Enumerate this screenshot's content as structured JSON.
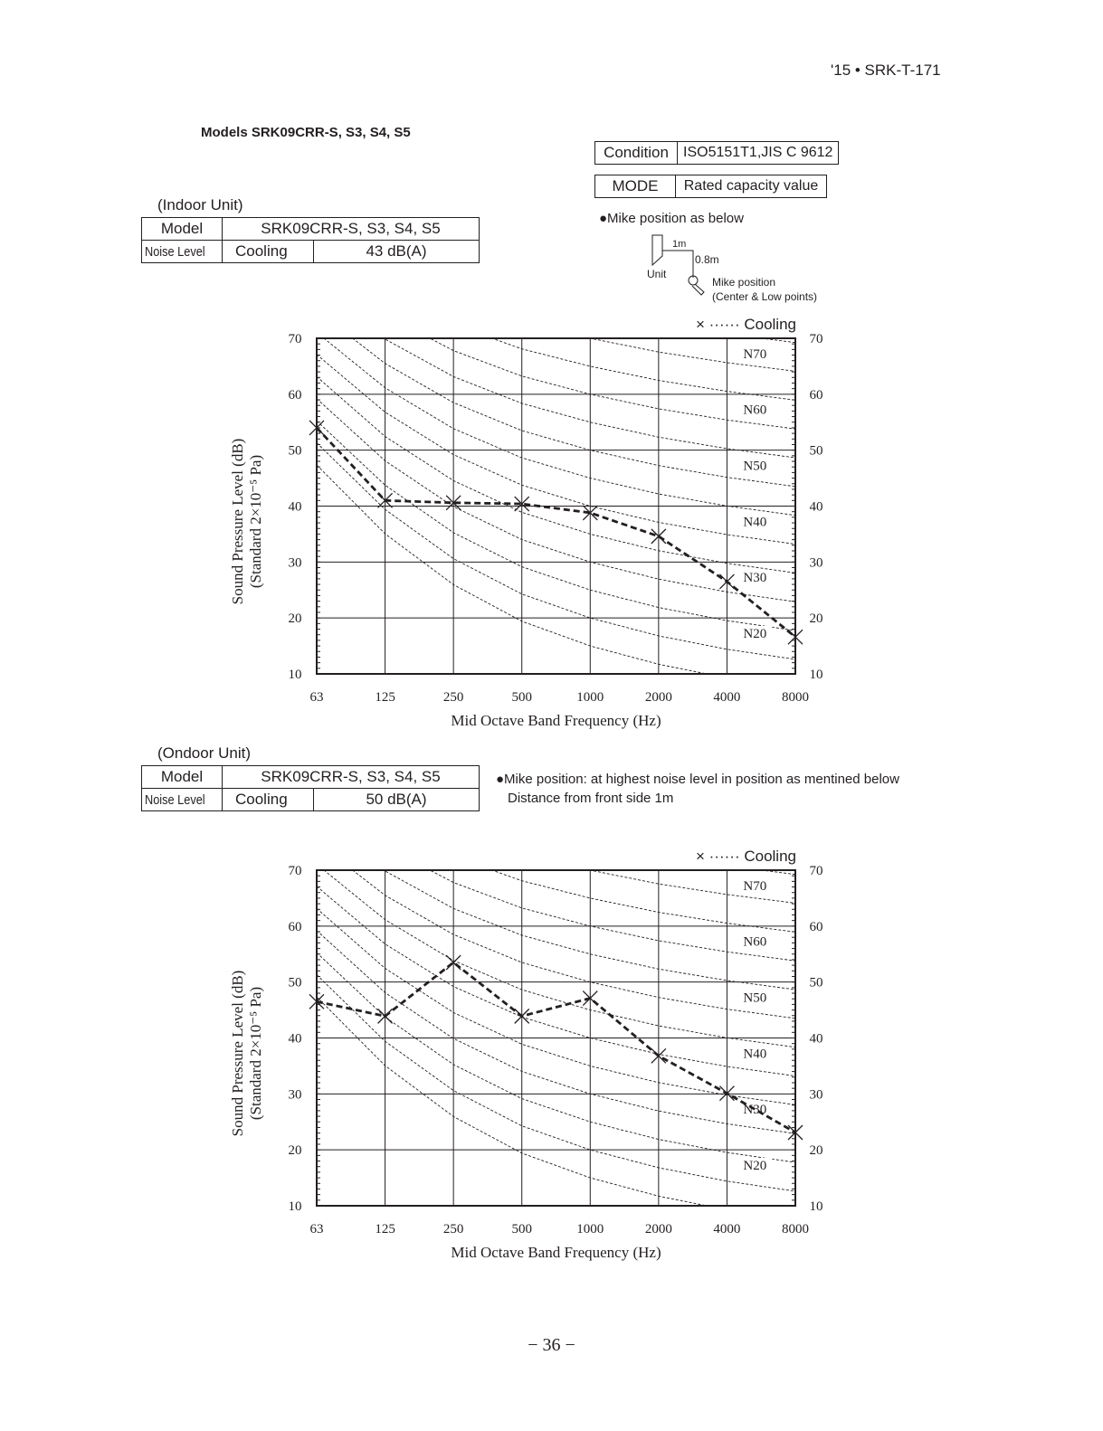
{
  "header": {
    "doc_ref": "'15 • SRK-T-171",
    "models_title": "Models SRK09CRR-S, S3, S4, S5"
  },
  "condition_table": {
    "condition_label": "Condition",
    "condition_value": "ISO5151T1,JIS C 9612",
    "mode_label": "MODE",
    "mode_value": "Rated capacity value"
  },
  "mike_indoor": {
    "note": "●Mike position as below",
    "dist1": "1m",
    "dist2": "0.8m",
    "unit_label": "Unit",
    "mike_label": "Mike position",
    "mike_sub": "(Center & Low points)"
  },
  "indoor": {
    "title": "(Indoor Unit)",
    "model_label": "Model",
    "model_value": "SRK09CRR-S, S3, S4, S5",
    "noise_label": "Noise Level",
    "mode": "Cooling",
    "level": "43 dB(A)"
  },
  "outdoor": {
    "title": "(Ondoor Unit)",
    "model_label": "Model",
    "model_value": "SRK09CRR-S, S3, S4, S5",
    "noise_label": "Noise Level",
    "mode": "Cooling",
    "level": "50 dB(A)",
    "note1": "●Mike position: at highest noise level in position as mentined below",
    "note2": "Distance from front side    1m"
  },
  "page_number": "− 36 −",
  "chart_data": [
    {
      "type": "line",
      "title": "Indoor Unit",
      "xlabel": "Mid Octave Band Frequency (Hz)",
      "ylabel": "Sound Pressure Level (dB)",
      "ylabel2": "(Standard 2×10⁻⁵ Pa)",
      "categories": [
        "63",
        "125",
        "250",
        "500",
        "1000",
        "2000",
        "4000",
        "8000"
      ],
      "ylim": [
        10,
        70
      ],
      "yticks": [
        "10",
        "20",
        "30",
        "40",
        "50",
        "60",
        "70"
      ],
      "legend": "× ······ Cooling",
      "legend_position": "top-right",
      "grid": true,
      "nr_labels": [
        "N70",
        "N60",
        "N50",
        "N40",
        "N30",
        "N20"
      ],
      "series": [
        {
          "name": "Cooling",
          "values": [
            54,
            41,
            40.6,
            40.4,
            38.8,
            34.6,
            26.5,
            16.6
          ]
        }
      ]
    },
    {
      "type": "line",
      "title": "Outdoor Unit",
      "xlabel": "Mid Octave Band Frequency (Hz)",
      "ylabel": "Sound Pressure Level (dB)",
      "ylabel2": "(Standard 2×10⁻⁵ Pa)",
      "categories": [
        "63",
        "125",
        "250",
        "500",
        "1000",
        "2000",
        "4000",
        "8000"
      ],
      "ylim": [
        10,
        70
      ],
      "yticks": [
        "10",
        "20",
        "30",
        "40",
        "50",
        "60",
        "70"
      ],
      "legend": "× ······ Cooling",
      "legend_position": "top-right",
      "grid": true,
      "nr_labels": [
        "N70",
        "N60",
        "N50",
        "N40",
        "N30",
        "N20"
      ],
      "series": [
        {
          "name": "Cooling",
          "values": [
            46.5,
            43.9,
            53.5,
            43.9,
            47.1,
            36.8,
            30.1,
            23.1
          ]
        }
      ]
    }
  ]
}
